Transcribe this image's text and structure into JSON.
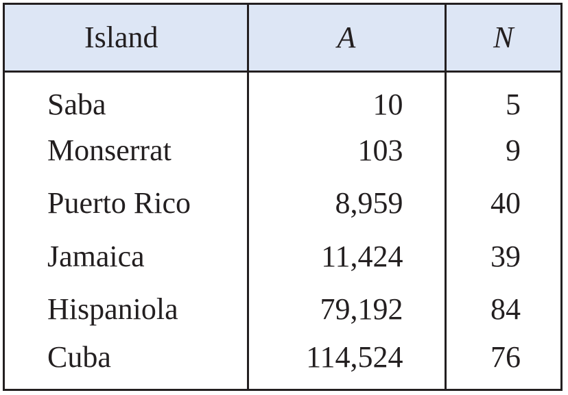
{
  "table": {
    "headers": {
      "island": "Island",
      "a": "A",
      "n": "N"
    },
    "rows": [
      {
        "island": "Saba",
        "a": "10",
        "n": "5"
      },
      {
        "island": "Monserrat",
        "a": "103",
        "n": "9"
      },
      {
        "island": "Puerto Rico",
        "a": "8,959",
        "n": "40"
      },
      {
        "island": "Jamaica",
        "a": "11,424",
        "n": "39"
      },
      {
        "island": "Hispaniola",
        "a": "79,192",
        "n": "84"
      },
      {
        "island": "Cuba",
        "a": "114,524",
        "n": "76"
      }
    ],
    "header_background": "#dde6f5",
    "line_color": "#231f20"
  }
}
